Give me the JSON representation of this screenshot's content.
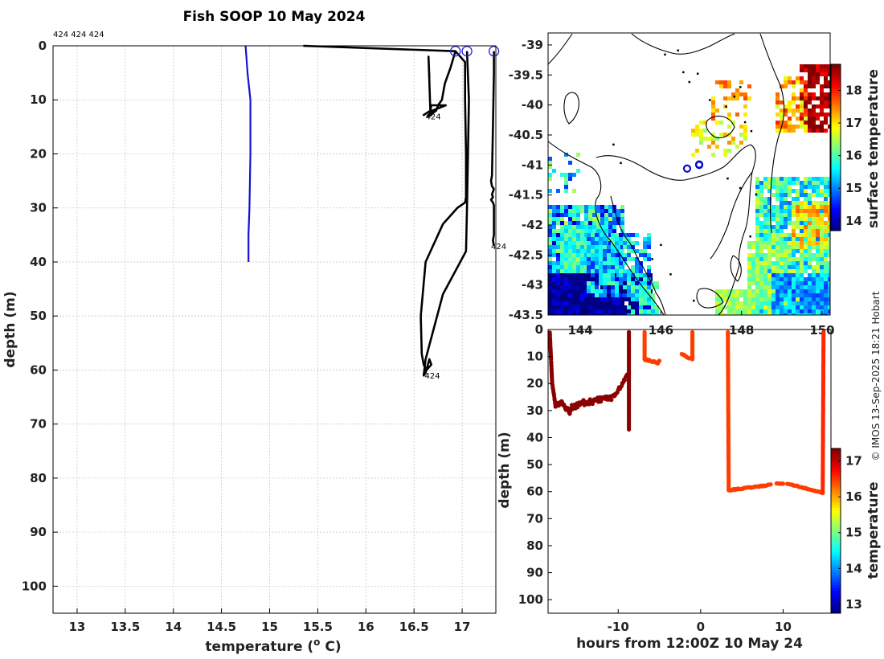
{
  "title": "Fish SOOP 10 May 2024",
  "copyright": "© IMOS 13-Sep-2025 18:21 Hobart",
  "chart_data": [
    {
      "id": "profile",
      "type": "line",
      "xlabel": "temperature (°C)",
      "xlabel_main": "temperature (",
      "xlabel_sup": "o",
      "xlabel_end": " C)",
      "ylabel": "depth (m)",
      "xlim": [
        12.75,
        17.35
      ],
      "ylim": [
        0,
        105
      ],
      "xticks": [
        "13",
        "13.5",
        "14",
        "14.5",
        "15",
        "15.5",
        "16",
        "16.5",
        "17"
      ],
      "yticks": [
        "0",
        "10",
        "20",
        "30",
        "40",
        "50",
        "60",
        "70",
        "80",
        "90",
        "100"
      ],
      "top_annotation": "424 424 424",
      "series": [
        {
          "name": "reference",
          "color": "#1414d2",
          "t": [
            14.75,
            14.77,
            14.8,
            14.8,
            14.8,
            14.79,
            14.78,
            14.78
          ],
          "d": [
            0,
            5,
            10,
            15,
            20,
            30,
            35,
            40
          ]
        },
        {
          "name": "profile-1",
          "color": "#000000",
          "t": [
            15.35,
            16.93,
            16.88,
            16.82,
            16.79,
            16.75,
            16.73,
            16.69,
            16.68,
            16.66,
            16.64,
            16.69,
            16.83,
            16.68,
            16.67,
            16.6,
            16.67,
            16.65,
            16.66
          ],
          "d": [
            0,
            1,
            4,
            7,
            10,
            11,
            12,
            12.5,
            12.8,
            13,
            13,
            12,
            11,
            11,
            12,
            12.8,
            12,
            2,
            6
          ],
          "label": "424",
          "label_t": 16.62,
          "label_d": 13
        },
        {
          "name": "profile-2",
          "color": "#000000",
          "t": [
            16.93,
            17.03,
            17.03,
            17.04,
            17.04,
            17.03,
            16.95,
            16.8,
            16.62,
            16.57,
            16.58,
            16.6,
            16.63,
            16.68,
            16.66,
            16.62,
            16.6,
            16.62,
            16.8,
            16.98,
            17.04,
            17.05,
            17.06,
            17.07,
            17.05
          ],
          "d": [
            1,
            3,
            10,
            20,
            28,
            29,
            30,
            33,
            40,
            50,
            57,
            59,
            60,
            59,
            58,
            60.5,
            61,
            58,
            46,
            40,
            38,
            30,
            20,
            10,
            1
          ],
          "label": "424",
          "label_t": 16.61,
          "label_d": 61
        },
        {
          "name": "profile-3",
          "color": "#000000",
          "t": [
            17.33,
            17.33,
            17.32,
            17.31,
            17.3,
            17.31,
            17.33,
            17.32,
            17.31,
            17.32,
            17.3,
            17.32,
            17.33,
            17.33,
            17.32,
            17.33
          ],
          "d": [
            1,
            5,
            15,
            24,
            25,
            26,
            26.5,
            27,
            27.5,
            28,
            28.5,
            29,
            29.5,
            35,
            36,
            37
          ],
          "label": "424",
          "label_t": 17.3,
          "label_d": 37
        }
      ],
      "surface_markers": [
        16.93,
        17.05,
        17.33
      ]
    },
    {
      "id": "map",
      "type": "heatmap",
      "colorbar_label": "surface temperature",
      "colorbar_ticks": [
        "14",
        "15",
        "16",
        "17",
        "18"
      ],
      "colorbar_range": [
        13.7,
        18.8
      ],
      "xticks": [
        "144",
        "146",
        "148",
        "150"
      ],
      "yticks": [
        "-39",
        "-39.5",
        "-40",
        "-40.5",
        "-41",
        "-41.5",
        "-42",
        "-42.5",
        "-43",
        "-43.5"
      ],
      "lon_range": [
        143.2,
        150.2
      ],
      "lat_range": [
        -38.8,
        -43.5
      ],
      "markers": [
        {
          "lon": 146.65,
          "lat": -41.06
        },
        {
          "lon": 146.95,
          "lat": -41.0
        },
        {
          "lon": 146.95,
          "lat": -40.99
        }
      ]
    },
    {
      "id": "timeseries",
      "type": "scatter",
      "xlabel": "hours from 12:00Z 10 May 24",
      "ylabel": "depth (m)",
      "xlim": [
        -18.5,
        15.8
      ],
      "ylim": [
        0,
        105
      ],
      "xticks": [
        "-10",
        "0",
        "10"
      ],
      "yticks": [
        "0",
        "10",
        "20",
        "30",
        "40",
        "50",
        "60",
        "70",
        "80",
        "90",
        "100"
      ],
      "colorbar_label": "temperature",
      "colorbar_ticks": [
        "13",
        "14",
        "15",
        "16",
        "17"
      ],
      "colorbar_range": [
        12.75,
        17.35
      ]
    }
  ]
}
